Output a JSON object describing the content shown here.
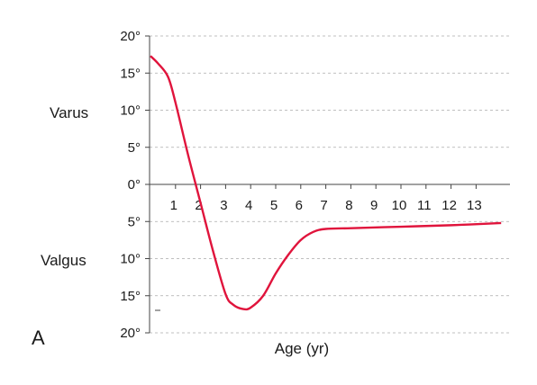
{
  "chart_data": {
    "type": "line",
    "panel_label": "A",
    "xlabel": "Age (yr)",
    "ylabel_upper": "Varus",
    "ylabel_lower": "Valgus",
    "xlim": [
      0,
      14
    ],
    "ylim": [
      -20,
      20
    ],
    "y_ticks": [
      {
        "value": 20,
        "label": "20°"
      },
      {
        "value": 15,
        "label": "15°"
      },
      {
        "value": 10,
        "label": "10°"
      },
      {
        "value": 5,
        "label": "5°"
      },
      {
        "value": 0,
        "label": "0°"
      },
      {
        "value": -5,
        "label": "5°"
      },
      {
        "value": -10,
        "label": "10°"
      },
      {
        "value": -15,
        "label": "15°"
      },
      {
        "value": -20,
        "label": "20°"
      }
    ],
    "x_ticks": [
      {
        "value": 1,
        "label": "1"
      },
      {
        "value": 2,
        "label": "2"
      },
      {
        "value": 3,
        "label": "3"
      },
      {
        "value": 4,
        "label": "4"
      },
      {
        "value": 5,
        "label": "5"
      },
      {
        "value": 6,
        "label": "6"
      },
      {
        "value": 7,
        "label": "7"
      },
      {
        "value": 8,
        "label": "8"
      },
      {
        "value": 9,
        "label": "9"
      },
      {
        "value": 10,
        "label": "10"
      },
      {
        "value": 11,
        "label": "11"
      },
      {
        "value": 12,
        "label": "12"
      },
      {
        "value": 13,
        "label": "13"
      }
    ],
    "grid": "horizontal dashed",
    "colors": {
      "line": "#e0143c",
      "axis": "#444444",
      "grid": "#aaaaaa"
    },
    "series": [
      {
        "x": [
          0,
          0.3,
          0.7,
          1.0,
          1.5,
          2.0,
          2.5,
          3.0,
          3.3,
          3.7,
          4.0,
          4.5,
          5.0,
          5.5,
          6.0,
          6.5,
          7.0,
          8.0,
          10.0,
          12.0,
          14.0
        ],
        "y": [
          17.3,
          16.3,
          14.5,
          11.0,
          4.0,
          -2.5,
          -9.0,
          -14.8,
          -16.2,
          -16.8,
          -16.6,
          -15.0,
          -12.0,
          -9.5,
          -7.5,
          -6.4,
          -6.0,
          -5.9,
          -5.7,
          -5.5,
          -5.2
        ]
      }
    ]
  }
}
